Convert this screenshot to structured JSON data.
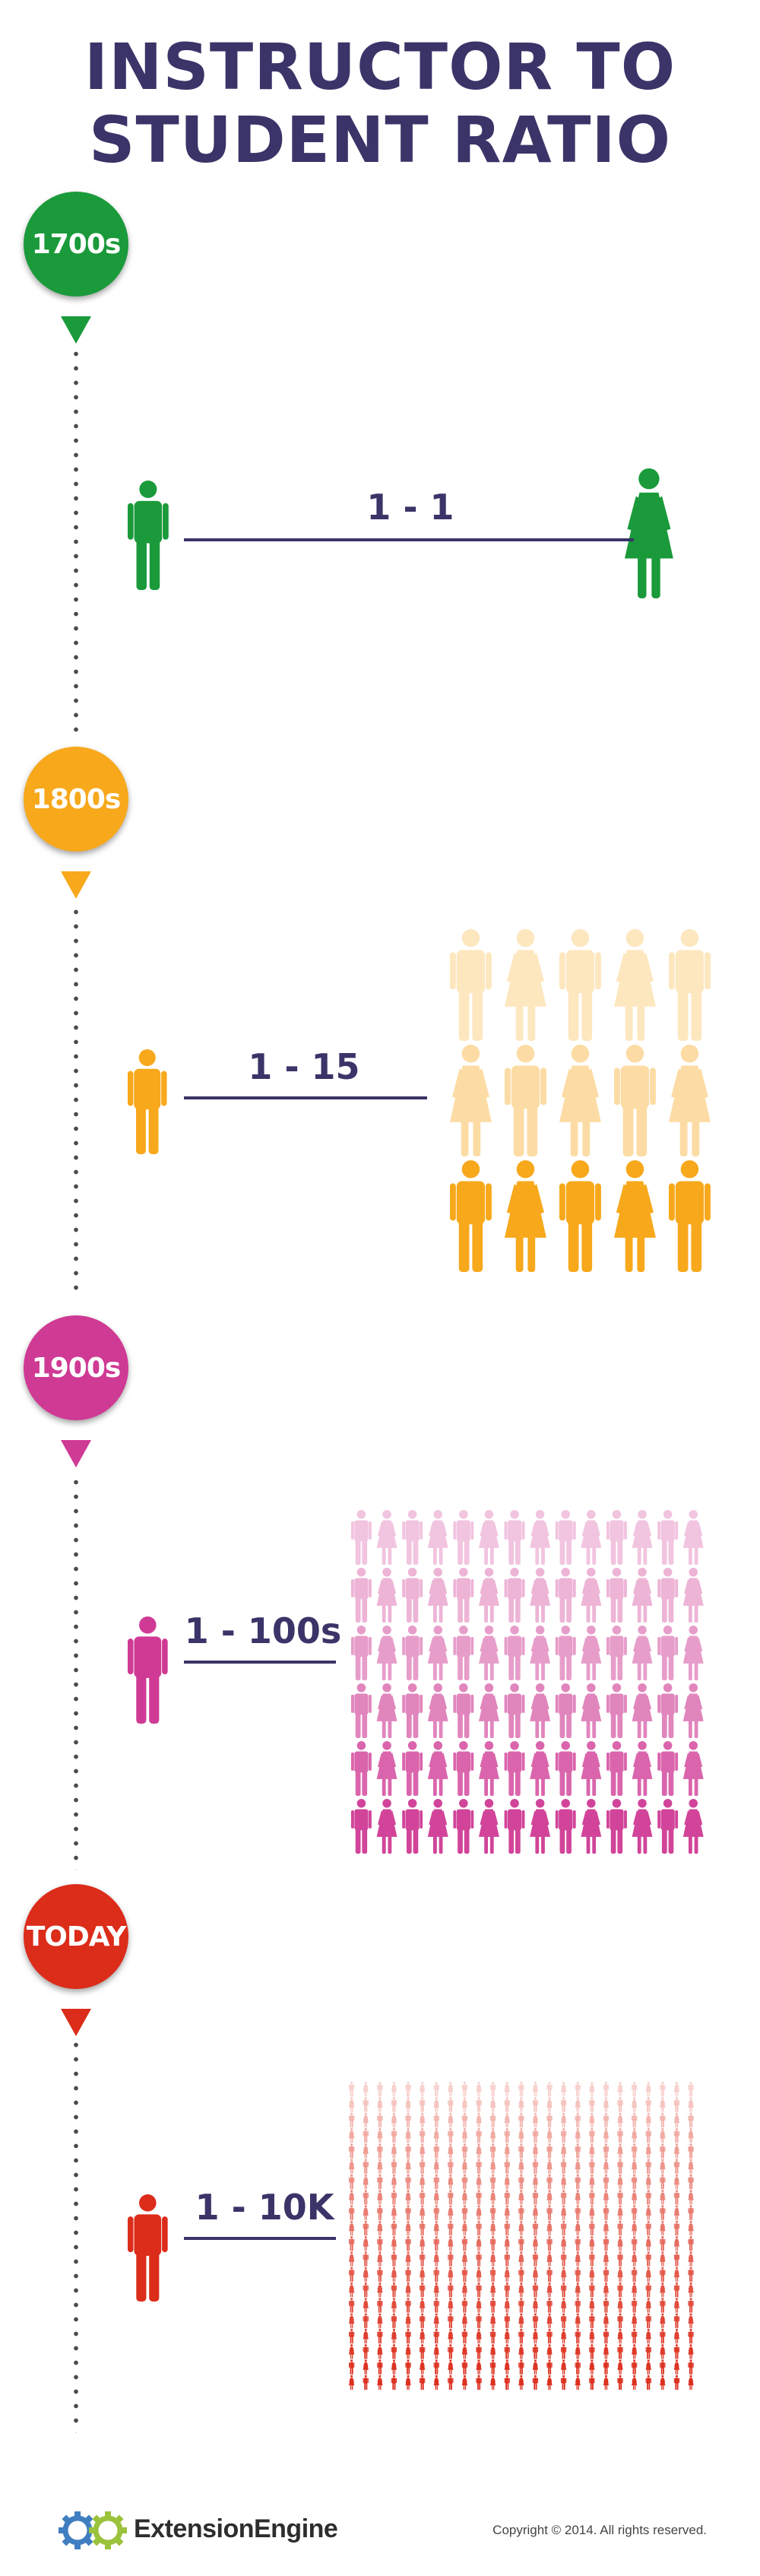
{
  "title_line1": "INSTRUCTOR TO",
  "title_line2": "STUDENT RATIO",
  "eras": [
    {
      "label": "1700s",
      "ratio": "1 - 1",
      "color": "#1a9a3a",
      "students_shown": 1
    },
    {
      "label": "1800s",
      "ratio": "1 - 15",
      "color": "#f7a81b",
      "students_shown": 15
    },
    {
      "label": "1900s",
      "ratio": "1 - 100s",
      "color": "#cf3a94",
      "students_shown": 84
    },
    {
      "label": "TODAY",
      "ratio": "1 - 10K",
      "color": "#dc2c1a",
      "students_shown": 500
    }
  ],
  "footer": {
    "brand": "ExtensionEngine",
    "copyright": "Copyright © 2014. All rights reserved.",
    "logo_colors": [
      "#3f7ec0",
      "#9bc23c"
    ],
    "logo_icon": "gear-icon"
  },
  "icons": {
    "instructor": "male-person-icon",
    "student_male": "male-person-icon",
    "student_female": "female-person-icon"
  }
}
